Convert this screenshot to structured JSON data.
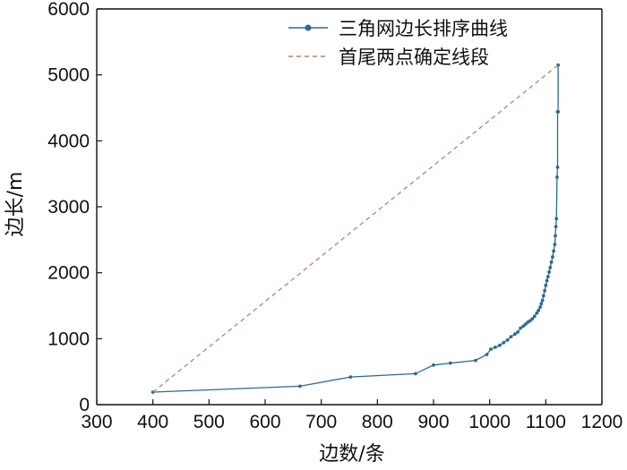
{
  "chart_data": {
    "type": "line",
    "xlabel": "边数/条",
    "ylabel": "边长/m",
    "xlim": [
      300,
      1200
    ],
    "ylim": [
      0,
      6000
    ],
    "xticks": [
      300,
      400,
      500,
      600,
      700,
      800,
      900,
      1000,
      1100,
      1200
    ],
    "yticks": [
      0,
      1000,
      2000,
      3000,
      4000,
      5000,
      6000
    ],
    "legend_position": "top-right",
    "series": [
      {
        "name": "三角网边长排序曲线",
        "style": "solid-with-markers",
        "color": "#2b6a94",
        "x": [
          400,
          662,
          752,
          868,
          900,
          930,
          975,
          995,
          1002,
          1010,
          1018,
          1025,
          1032,
          1038,
          1045,
          1050,
          1055,
          1060,
          1064,
          1068,
          1072,
          1076,
          1080,
          1084,
          1087,
          1090,
          1092,
          1094,
          1096,
          1098,
          1100,
          1102,
          1104,
          1106,
          1108,
          1110,
          1112,
          1114,
          1116,
          1117,
          1118,
          1119,
          1120,
          1121,
          1121,
          1122,
          1122
        ],
        "y": [
          190,
          280,
          420,
          470,
          600,
          630,
          670,
          760,
          840,
          870,
          900,
          940,
          980,
          1030,
          1070,
          1100,
          1160,
          1190,
          1220,
          1250,
          1270,
          1300,
          1340,
          1390,
          1430,
          1480,
          1530,
          1580,
          1650,
          1730,
          1810,
          1880,
          1940,
          2010,
          2080,
          2160,
          2240,
          2330,
          2430,
          2560,
          2700,
          2820,
          3450,
          3600,
          4440,
          4440,
          5150
        ]
      },
      {
        "name": "首尾两点确定线段",
        "style": "dashed",
        "color": "#b8826e",
        "x": [
          400,
          1122
        ],
        "y": [
          190,
          5150
        ]
      }
    ]
  }
}
